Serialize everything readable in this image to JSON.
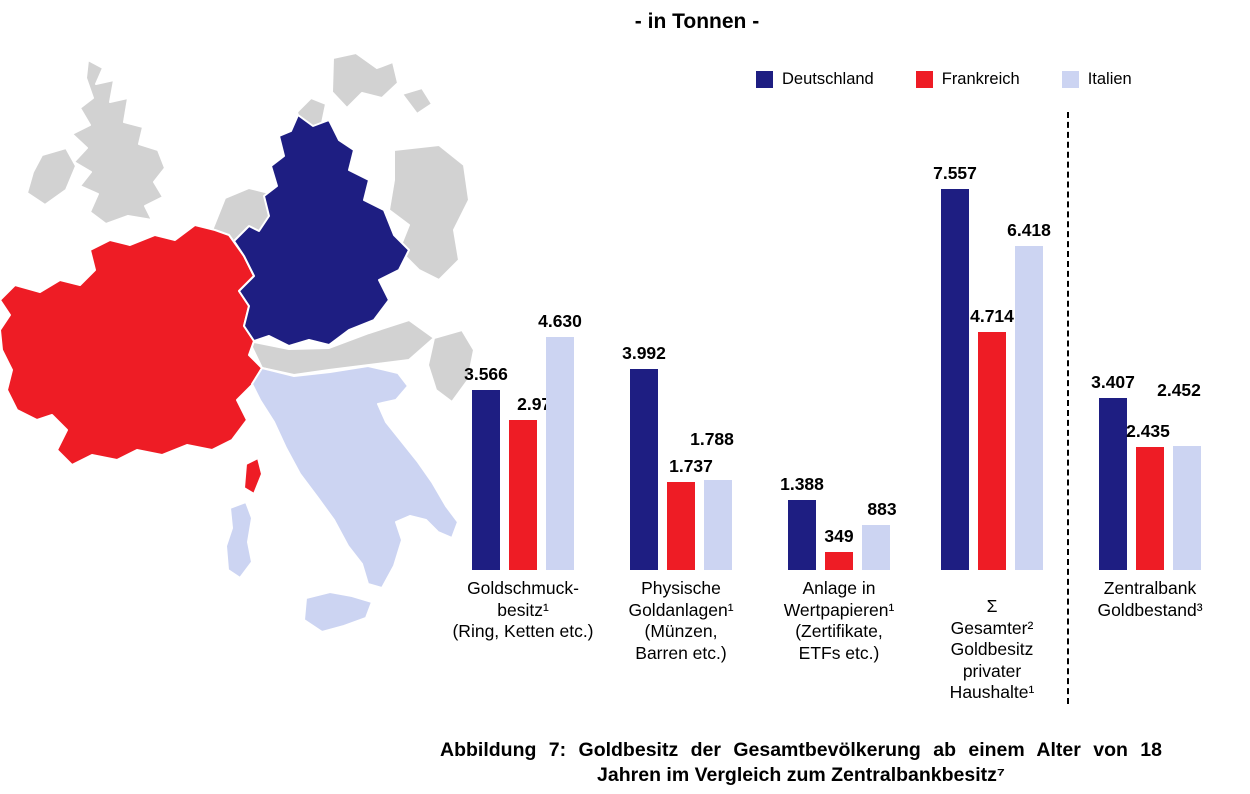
{
  "caption": {
    "text": "Abbildung 7: Goldbesitz der Gesamtbevölkerung ab einem Alter von 18 Jahren im Vergleich zum Zentralbankbesitz⁷"
  },
  "map": {
    "neutral_color": "#d2d2d2",
    "highlighted_countries": [
      {
        "country": "Deutschland",
        "color": "#1e1e82"
      },
      {
        "country": "Frankreich",
        "color": "#ee1c25"
      },
      {
        "country": "Italien",
        "color": "#ccd4f2"
      }
    ]
  },
  "chart_data": {
    "type": "bar",
    "title": "- in Tonnen -",
    "unit": "Tonnen",
    "ylim": [
      0,
      7800
    ],
    "grid": false,
    "legend_position": "top-right",
    "separator": {
      "after_category_index": 3,
      "style": "dashed"
    },
    "categories": [
      {
        "lines": [
          "Goldschmuck-",
          "besitz¹",
          "(Ring, Ketten etc.)"
        ],
        "dy": 0
      },
      {
        "lines": [
          "Physische",
          "Goldanlagen¹",
          "(Münzen,",
          "Barren etc.)"
        ],
        "dy": 0
      },
      {
        "lines": [
          "Anlage in",
          "Wertpapieren¹",
          "(Zertifikate,",
          "ETFs etc.)"
        ],
        "dy": 0
      },
      {
        "lines": [
          "Σ",
          "Gesamter²",
          "Goldbesitz",
          "privater",
          "Haushalte¹"
        ],
        "dy": 18
      },
      {
        "lines": [
          "Zentralbank",
          "Goldbestand³"
        ],
        "dy": 0
      }
    ],
    "series": [
      {
        "name": "Deutschland",
        "color": "#1e1e82",
        "values": [
          3566,
          3992,
          1388,
          7557,
          3407
        ],
        "labels": [
          "3.566",
          "3.992",
          "1.388",
          "7.557",
          "3.407"
        ]
      },
      {
        "name": "Frankreich",
        "color": "#ee1c25",
        "values": [
          2978,
          1737,
          349,
          4714,
          2435
        ],
        "labels": [
          "2.978",
          "1.737",
          "349",
          "4.714",
          "2.435"
        ]
      },
      {
        "name": "Italien",
        "color": "#ccd4f2",
        "values": [
          4630,
          1788,
          883,
          6418,
          2452
        ],
        "labels": [
          "4.630",
          "1.788",
          "883",
          "6.418",
          "2.452"
        ]
      }
    ],
    "label_offsets": {
      "Deutschland": [
        [
          0,
          0
        ],
        [
          0,
          0
        ],
        [
          0,
          0
        ],
        [
          0,
          0
        ],
        [
          0,
          0
        ]
      ],
      "Frankreich": [
        [
          16,
          0
        ],
        [
          10,
          0
        ],
        [
          0,
          0
        ],
        [
          0,
          0
        ],
        [
          -2,
          0
        ]
      ],
      "Italien": [
        [
          0,
          0
        ],
        [
          -6,
          -25
        ],
        [
          6,
          0
        ],
        [
          0,
          0
        ],
        [
          -8,
          -40
        ]
      ]
    }
  }
}
